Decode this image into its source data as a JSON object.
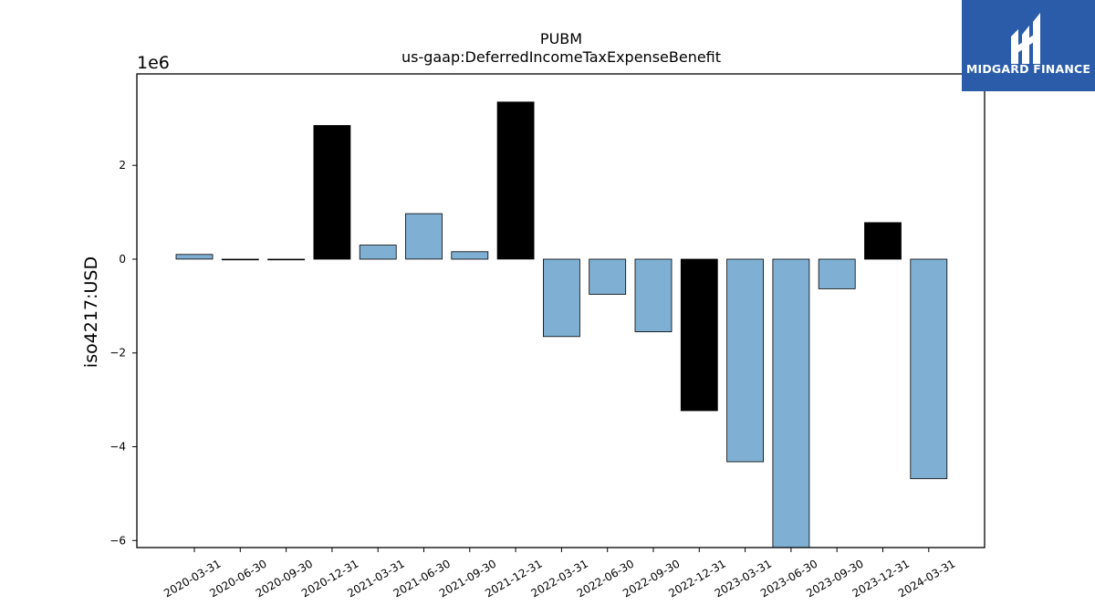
{
  "chart_data": {
    "type": "bar",
    "title": "PUBM",
    "subtitle": "us-gaap:DeferredIncomeTaxExpenseBenefit",
    "ylabel": "iso4217:USD",
    "xlabel": "",
    "scale_label": "1e6",
    "ylim": [
      -6.15,
      3.95
    ],
    "yticks": [
      2,
      0,
      -2,
      -4,
      -6
    ],
    "ytick_labels": [
      "2",
      "0",
      "−2",
      "−4",
      "−6"
    ],
    "grid": false,
    "colors": {
      "quarter": "#7fb0d3",
      "fiscal_year_end": "#000000",
      "edge": "#000000"
    },
    "categories": [
      "2020-03-31",
      "2020-06-30",
      "2020-09-30",
      "2020-12-31",
      "2021-03-31",
      "2021-06-30",
      "2021-09-30",
      "2021-12-31",
      "2022-03-31",
      "2022-06-30",
      "2022-09-30",
      "2022-12-31",
      "2023-03-31",
      "2023-06-30",
      "2023-09-30",
      "2023-12-31",
      "2024-03-31"
    ],
    "values": [
      0.1,
      0.0,
      0.0,
      2.85,
      0.3,
      0.97,
      0.16,
      3.35,
      -1.65,
      -0.75,
      -1.55,
      -3.23,
      -4.32,
      -6.15,
      -0.63,
      0.78,
      -4.68
    ],
    "highlight": [
      false,
      false,
      false,
      true,
      false,
      false,
      false,
      true,
      false,
      false,
      false,
      true,
      false,
      false,
      false,
      true,
      false
    ]
  },
  "logo": {
    "text": "MIDGARD FINANCE",
    "icon": "midgard-logo-icon"
  }
}
